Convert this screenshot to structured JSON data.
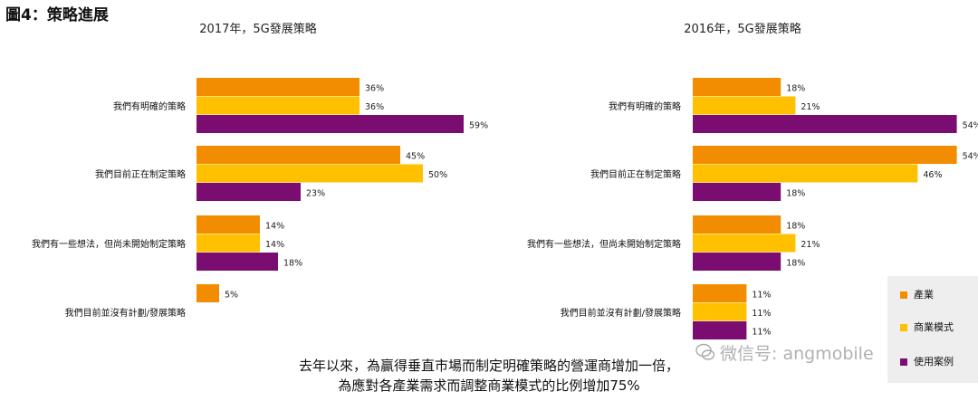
{
  "figure_title": "圖4：策略進展",
  "colors": {
    "industry": "#F28C00",
    "business": "#FFC000",
    "usecase": "#7B0D72"
  },
  "legend": {
    "industry": "產業",
    "business": "商業模式",
    "usecase": "使用案例"
  },
  "chart_data": [
    {
      "type": "bar",
      "orientation": "horizontal",
      "title": "2017年，5G發展策略",
      "categories": [
        "我們有明確的策略",
        "我們目前正在制定策略",
        "我們有一些想法，但尚未開始制定策略",
        "我們目前並沒有計劃/發展策略"
      ],
      "series": [
        {
          "name": "產業",
          "values": [
            36,
            45,
            14,
            5
          ]
        },
        {
          "name": "商業模式",
          "values": [
            36,
            50,
            14,
            null
          ]
        },
        {
          "name": "使用案例",
          "values": [
            59,
            23,
            18,
            null
          ]
        }
      ],
      "value_suffix": "%"
    },
    {
      "type": "bar",
      "orientation": "horizontal",
      "title": "2016年，5G發展策略",
      "categories": [
        "我們有明確的策略",
        "我們目前正在制定策略",
        "我們有一些想法，但尚未開始制定策略",
        "我們目前並沒有計劃/發展策略"
      ],
      "series": [
        {
          "name": "產業",
          "values": [
            18,
            54,
            18,
            11
          ]
        },
        {
          "name": "商業模式",
          "values": [
            21,
            46,
            21,
            11
          ]
        },
        {
          "name": "使用案例",
          "values": [
            54,
            18,
            18,
            11
          ]
        }
      ],
      "value_suffix": "%"
    }
  ],
  "footer": {
    "line1": "去年以來，為贏得垂直市場而制定明確策略的營運商增加一倍，",
    "line2": "為應對各產業需求而調整商業模式的比例增加75%"
  },
  "watermark": "微信号: angmobile"
}
